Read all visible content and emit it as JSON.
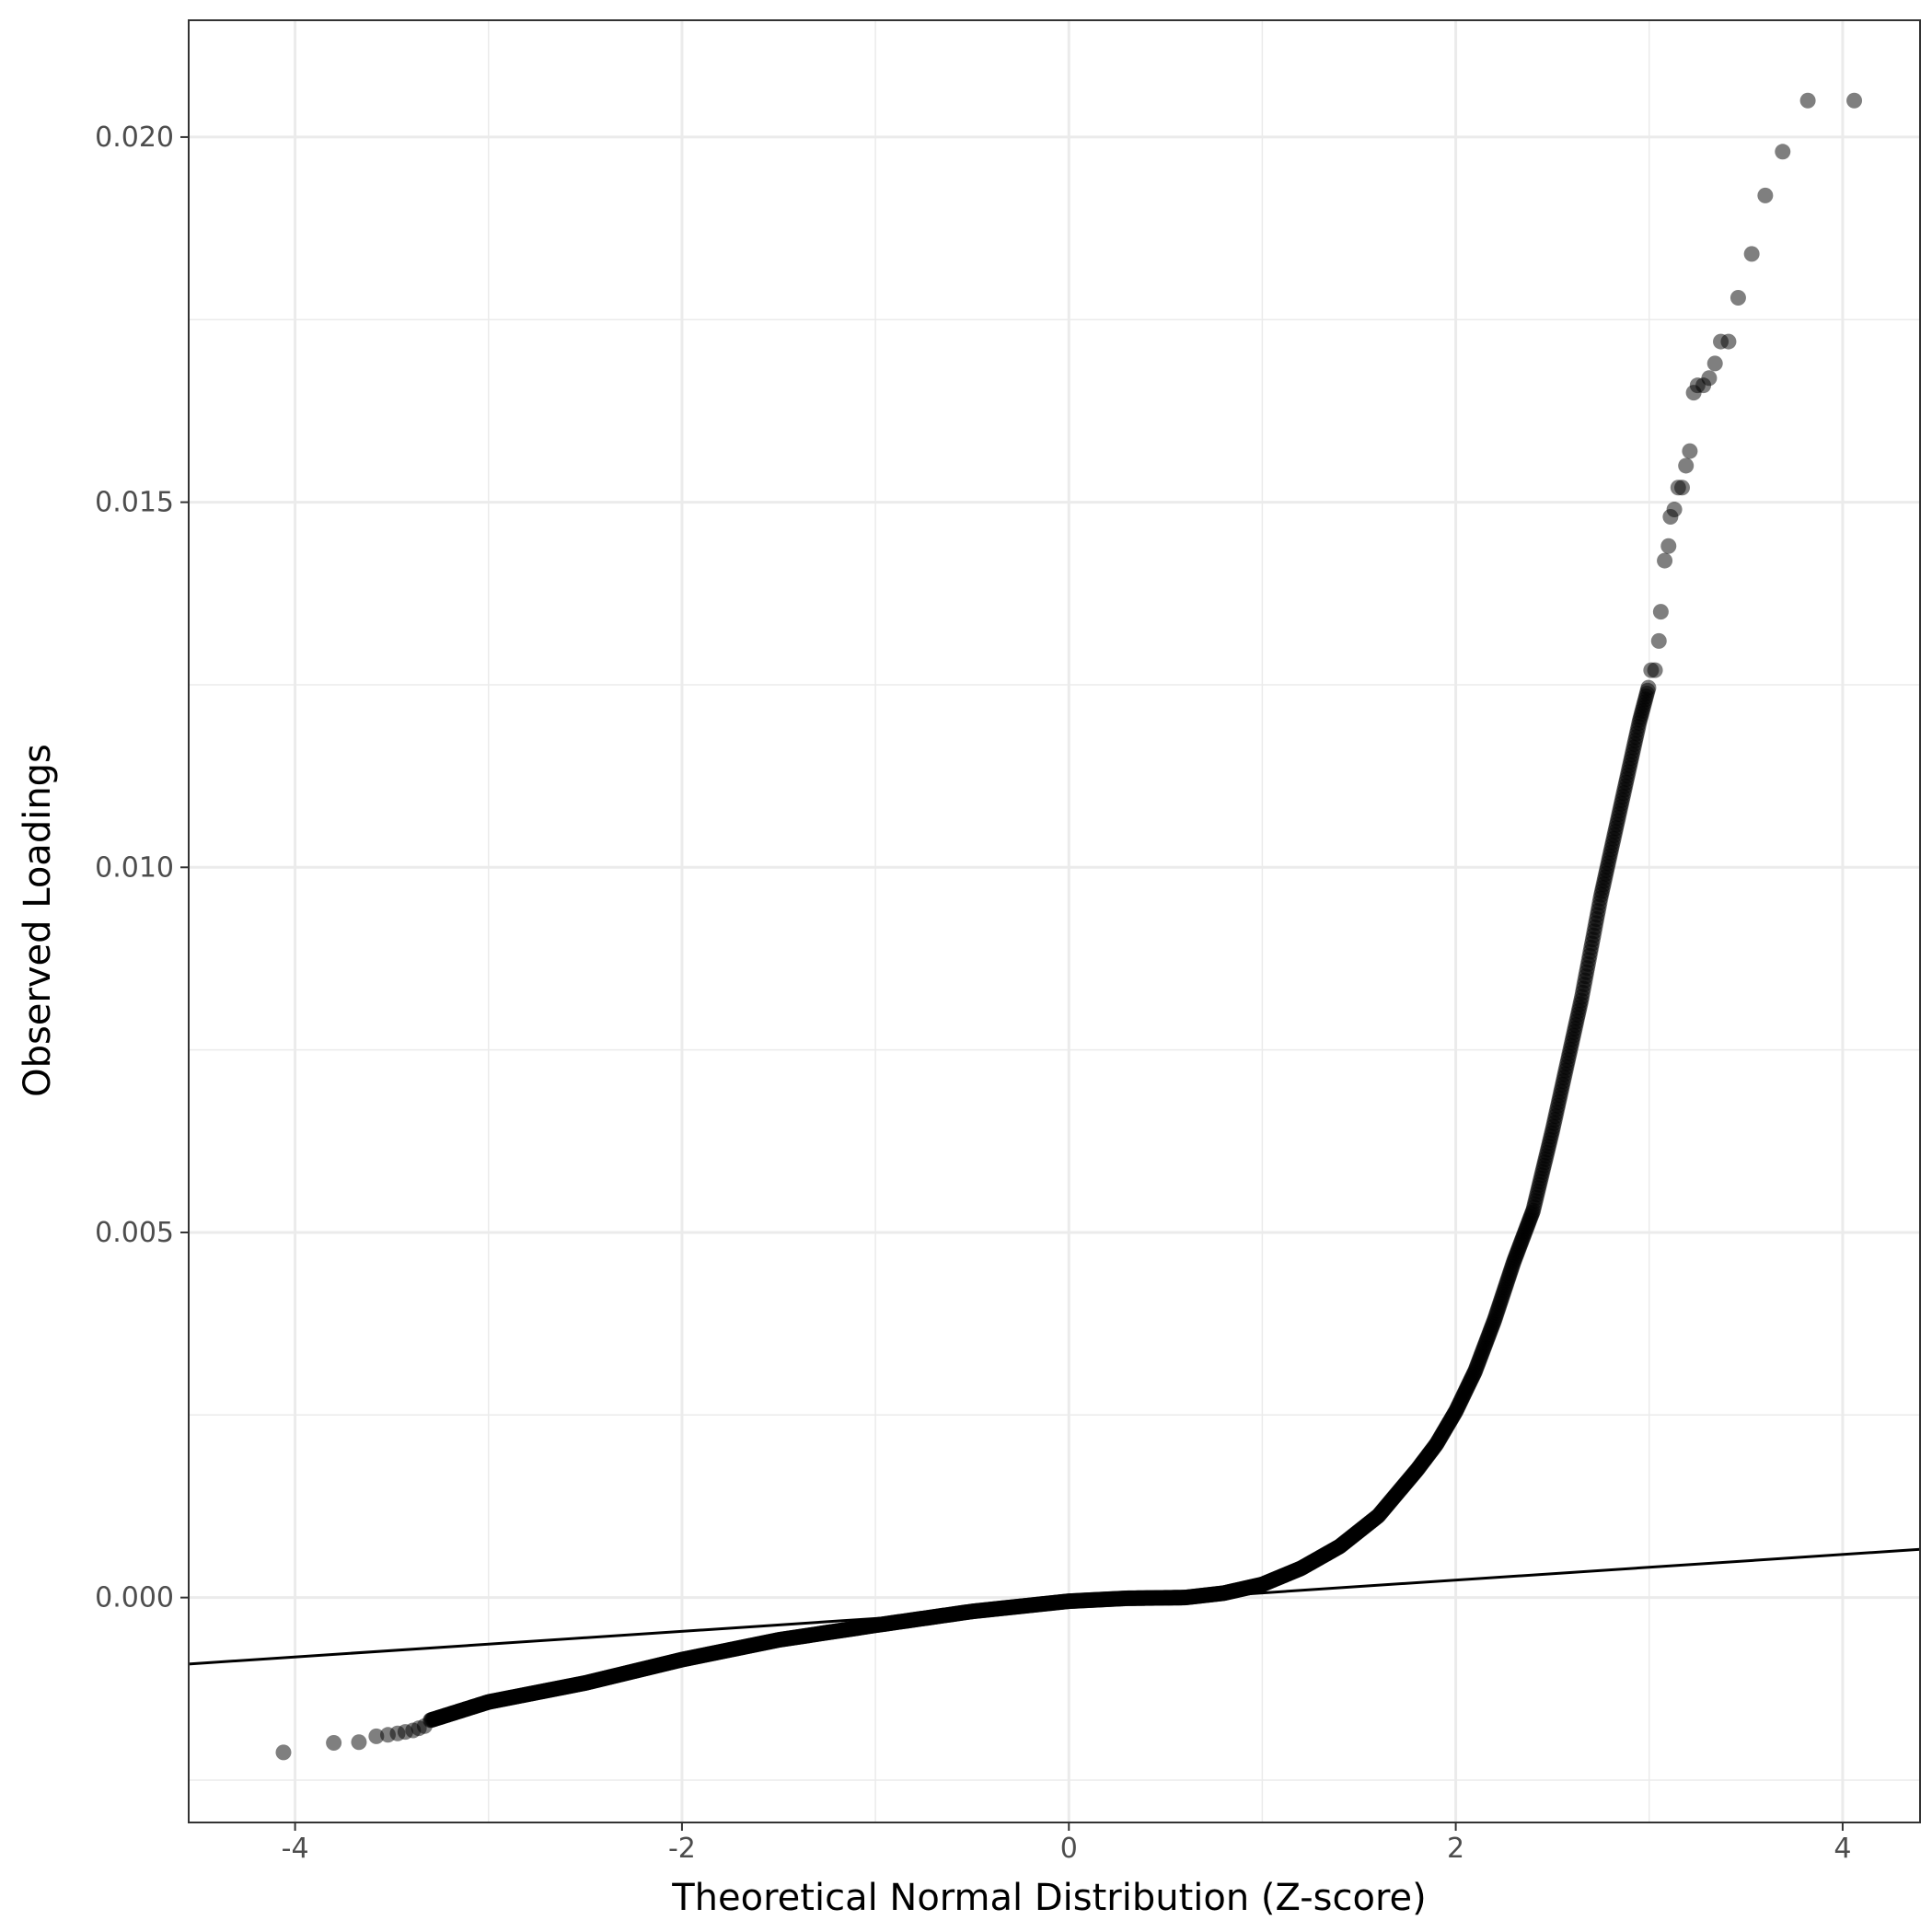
{
  "chart_data": {
    "type": "scatter",
    "title": "",
    "xlabel": "Theoretical Normal Distribution (Z-score)",
    "ylabel": "Observed Loadings",
    "xlim": [
      -4.55,
      4.4
    ],
    "ylim": [
      -0.00308,
      0.0216
    ],
    "x_ticks": [
      -4,
      -2,
      0,
      2,
      4
    ],
    "x_tick_labels": [
      "-4",
      "-2",
      "0",
      "2",
      "4"
    ],
    "y_ticks": [
      0.0,
      0.005,
      0.01,
      0.015,
      0.02
    ],
    "y_tick_labels": [
      "0.000",
      "0.005",
      "0.010",
      "0.015",
      "0.020"
    ],
    "grid": true,
    "legend": "none",
    "point_color": "#000000",
    "point_alpha": 0.5,
    "reference_line": {
      "x": [
        -4.55,
        4.4
      ],
      "y": [
        -0.00091,
        0.00066
      ],
      "color": "#000000"
    },
    "curve_knots": {
      "x": [
        -3.3,
        -3.0,
        -2.5,
        -2.0,
        -1.5,
        -1.0,
        -0.5,
        0.0,
        0.3,
        0.6,
        0.8,
        1.0,
        1.2,
        1.4,
        1.6,
        1.8,
        1.9,
        2.0,
        2.1,
        2.2,
        2.3,
        2.4,
        2.5,
        2.55,
        2.6,
        2.65,
        2.7,
        2.75,
        2.8,
        2.85,
        2.9,
        2.95,
        3.0
      ],
      "y": [
        -0.00168,
        -0.00143,
        -0.00117,
        -0.00085,
        -0.00058,
        -0.00038,
        -0.00019,
        -5e-05,
        -1e-05,
        0.0,
        6e-05,
        0.00018,
        0.0004,
        0.0007,
        0.00112,
        0.00175,
        0.0021,
        0.00255,
        0.0031,
        0.0038,
        0.0046,
        0.0053,
        0.0064,
        0.007,
        0.0076,
        0.0082,
        0.0089,
        0.0096,
        0.0102,
        0.0108,
        0.0114,
        0.012,
        0.0125
      ]
    },
    "tail_points": {
      "x": [
        -4.06,
        -3.8,
        -3.67,
        -3.58,
        -3.52,
        -3.47,
        -3.43,
        -3.39,
        -3.36,
        -3.33,
        3.01,
        3.03,
        3.05,
        3.06,
        3.08,
        3.1,
        3.11,
        3.13,
        3.15,
        3.17,
        3.19,
        3.21,
        3.23,
        3.25,
        3.28,
        3.31,
        3.34,
        3.37,
        3.41,
        3.46,
        3.53,
        3.6,
        3.69,
        3.82,
        4.06
      ],
      "y": [
        -0.00212,
        -0.00199,
        -0.00198,
        -0.0019,
        -0.00188,
        -0.00186,
        -0.00184,
        -0.00182,
        -0.00179,
        -0.00176,
        0.0127,
        0.0127,
        0.0131,
        0.0135,
        0.0142,
        0.0144,
        0.0148,
        0.0149,
        0.0152,
        0.0152,
        0.0155,
        0.0157,
        0.0165,
        0.0166,
        0.0166,
        0.0167,
        0.0169,
        0.0172,
        0.0172,
        0.0178,
        0.0184,
        0.0192,
        0.0198,
        0.0205,
        0.0205
      ]
    }
  }
}
